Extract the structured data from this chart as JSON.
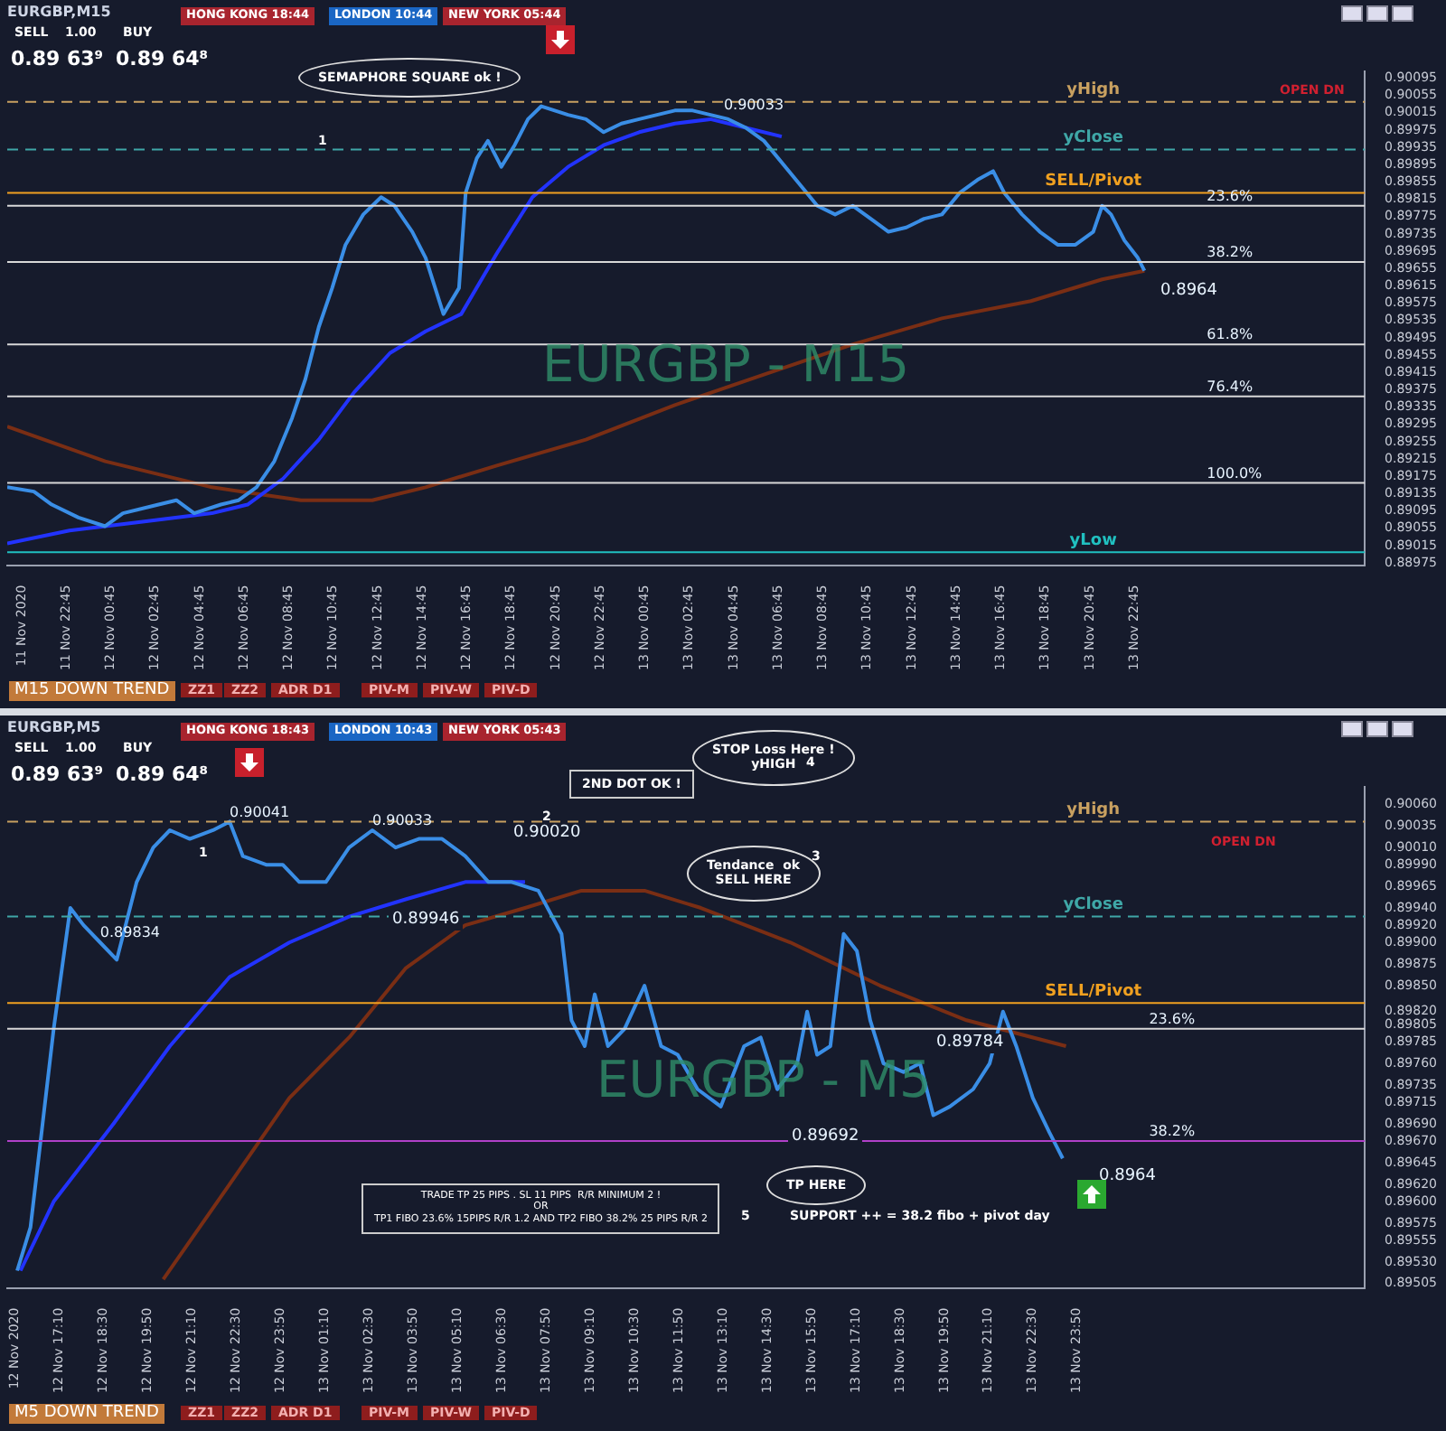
{
  "chart_data": [
    {
      "type": "line",
      "title": "EURGBP,M15",
      "xlim": [
        "2020-11-11T20:06",
        "2020-11-14T09:06"
      ],
      "xticks": [
        {
          "value": "2020-11-11T20:45",
          "label": "11 Nov 2020"
        },
        {
          "value": "2020-11-11T22:45",
          "label": "11 Nov 22:45"
        },
        {
          "value": "2020-11-12T00:45",
          "label": "12 Nov 00:45"
        },
        {
          "value": "2020-11-12T02:45",
          "label": "12 Nov 02:45"
        },
        {
          "value": "2020-11-12T04:45",
          "label": "12 Nov 04:45"
        },
        {
          "value": "2020-11-12T06:45",
          "label": "12 Nov 06:45"
        },
        {
          "value": "2020-11-12T08:45",
          "label": "12 Nov 08:45"
        },
        {
          "value": "2020-11-12T10:45",
          "label": "12 Nov 10:45"
        },
        {
          "value": "2020-11-12T12:45",
          "label": "12 Nov 12:45"
        },
        {
          "value": "2020-11-12T14:45",
          "label": "12 Nov 14:45"
        },
        {
          "value": "2020-11-12T16:45",
          "label": "12 Nov 16:45"
        },
        {
          "value": "2020-11-12T18:45",
          "label": "12 Nov 18:45"
        },
        {
          "value": "2020-11-12T20:45",
          "label": "12 Nov 20:45"
        },
        {
          "value": "2020-11-12T22:45",
          "label": "12 Nov 22:45"
        },
        {
          "value": "2020-11-13T00:45",
          "label": "13 Nov 00:45"
        },
        {
          "value": "2020-11-13T02:45",
          "label": "13 Nov 02:45"
        },
        {
          "value": "2020-11-13T04:45",
          "label": "13 Nov 04:45"
        },
        {
          "value": "2020-11-13T06:45",
          "label": "13 Nov 06:45"
        },
        {
          "value": "2020-11-13T08:45",
          "label": "13 Nov 08:45"
        },
        {
          "value": "2020-11-13T10:45",
          "label": "13 Nov 10:45"
        },
        {
          "value": "2020-11-13T12:45",
          "label": "13 Nov 12:45"
        },
        {
          "value": "2020-11-13T14:45",
          "label": "13 Nov 14:45"
        },
        {
          "value": "2020-11-13T16:45",
          "label": "13 Nov 16:45"
        },
        {
          "value": "2020-11-13T18:45",
          "label": "13 Nov 18:45"
        },
        {
          "value": "2020-11-13T20:45",
          "label": "13 Nov 20:45"
        },
        {
          "value": "2020-11-13T22:45",
          "label": "13 Nov 22:45"
        }
      ],
      "ylim": [
        0.8897,
        0.9011
      ],
      "yticks": [
        0.90095,
        0.90055,
        0.90015,
        0.89975,
        0.89935,
        0.89895,
        0.89855,
        0.89815,
        0.89775,
        0.89735,
        0.89695,
        0.89655,
        0.89615,
        0.89575,
        0.89535,
        0.89495,
        0.89455,
        0.89415,
        0.89375,
        0.89335,
        0.89295,
        0.89255,
        0.89215,
        0.89175,
        0.89135,
        0.89095,
        0.89055,
        0.89015,
        0.88975
      ],
      "grid": false,
      "legend": false,
      "marker": "none",
      "line_style": "solid",
      "series": [
        {
          "color": "#3a8ee6",
          "x": [
            "2020-11-11T20:06",
            "2020-11-11T21:18",
            "2020-11-11T22:06",
            "2020-11-11T23:18",
            "2020-11-12T00:30",
            "2020-11-12T01:18",
            "2020-11-12T02:54",
            "2020-11-12T03:42",
            "2020-11-12T04:30",
            "2020-11-12T05:42",
            "2020-11-12T06:30",
            "2020-11-12T07:18",
            "2020-11-12T08:06",
            "2020-11-12T08:54",
            "2020-11-12T09:30",
            "2020-11-12T10:06",
            "2020-11-12T10:42",
            "2020-11-12T11:18",
            "2020-11-12T12:06",
            "2020-11-12T12:54",
            "2020-11-12T13:30",
            "2020-11-12T14:18",
            "2020-11-12T14:54",
            "2020-11-12T15:42",
            "2020-11-12T16:24",
            "2020-11-12T16:42",
            "2020-11-12T17:12",
            "2020-11-12T17:42",
            "2020-11-12T18:18",
            "2020-11-12T18:54",
            "2020-11-12T19:30",
            "2020-11-12T20:06",
            "2020-11-12T20:42",
            "2020-11-12T21:18",
            "2020-11-12T22:06",
            "2020-11-12T22:54",
            "2020-11-12T23:42",
            "2020-11-13T00:30",
            "2020-11-13T01:18",
            "2020-11-13T02:06",
            "2020-11-13T02:54",
            "2020-11-13T03:42",
            "2020-11-13T04:30",
            "2020-11-13T05:18",
            "2020-11-13T06:06",
            "2020-11-13T07:42",
            "2020-11-13T08:30",
            "2020-11-13T09:18",
            "2020-11-13T10:06",
            "2020-11-13T10:54",
            "2020-11-13T11:42",
            "2020-11-13T12:30",
            "2020-11-13T13:18",
            "2020-11-13T14:06",
            "2020-11-13T14:54",
            "2020-11-13T15:42",
            "2020-11-13T16:24",
            "2020-11-13T16:54",
            "2020-11-13T17:42",
            "2020-11-13T18:30",
            "2020-11-13T19:18",
            "2020-11-13T20:06",
            "2020-11-13T20:54",
            "2020-11-13T21:18",
            "2020-11-13T21:42",
            "2020-11-13T22:18",
            "2020-11-13T22:54",
            "2020-11-13T23:12"
          ],
          "values": [
            0.8915,
            0.8914,
            0.8911,
            0.8908,
            0.8906,
            0.8909,
            0.8911,
            0.8912,
            0.8909,
            0.8911,
            0.8912,
            0.8915,
            0.8921,
            0.8931,
            0.894,
            0.8952,
            0.8961,
            0.8971,
            0.8978,
            0.8982,
            0.898,
            0.8974,
            0.8968,
            0.8955,
            0.8961,
            0.8983,
            0.8991,
            0.8995,
            0.8989,
            0.8994,
            0.9,
            0.9003,
            0.9002,
            0.9001,
            0.9,
            0.8997,
            0.8999,
            0.9,
            0.9001,
            0.9002,
            0.9002,
            0.9001,
            0.9,
            0.8998,
            0.8995,
            0.8985,
            0.898,
            0.8978,
            0.898,
            0.8977,
            0.8974,
            0.8975,
            0.8977,
            0.8978,
            0.8983,
            0.8986,
            0.8988,
            0.8983,
            0.8978,
            0.8974,
            0.8971,
            0.8971,
            0.8974,
            0.898,
            0.8978,
            0.8972,
            0.8968,
            0.8965
          ]
        },
        {
          "color": "#2233ff",
          "x": [
            "2020-11-11T20:06",
            "2020-11-11T22:54",
            "2020-11-12T02:06",
            "2020-11-12T05:18",
            "2020-11-12T06:54",
            "2020-11-12T08:30",
            "2020-11-12T10:06",
            "2020-11-12T11:42",
            "2020-11-12T13:18",
            "2020-11-12T14:54",
            "2020-11-12T16:30",
            "2020-11-12T18:06",
            "2020-11-12T19:42",
            "2020-11-12T21:18",
            "2020-11-12T22:54",
            "2020-11-13T00:30",
            "2020-11-13T02:06",
            "2020-11-13T03:42",
            "2020-11-13T05:18",
            "2020-11-13T06:54"
          ],
          "values": [
            0.8902,
            0.8905,
            0.8907,
            0.8909,
            0.8911,
            0.8917,
            0.8926,
            0.8937,
            0.8946,
            0.8951,
            0.8955,
            0.8969,
            0.8982,
            0.8989,
            0.8994,
            0.8997,
            0.8999,
            0.9,
            0.8998,
            0.8996
          ]
        },
        {
          "color": "#7a2e14",
          "x": [
            "2020-11-11T20:06",
            "2020-11-12T00:30",
            "2020-11-12T05:18",
            "2020-11-12T09:18",
            "2020-11-12T12:30",
            "2020-11-12T14:54",
            "2020-11-12T18:06",
            "2020-11-12T22:06",
            "2020-11-13T02:06",
            "2020-11-13T06:06",
            "2020-11-13T10:06",
            "2020-11-13T14:06",
            "2020-11-13T18:06",
            "2020-11-13T21:18",
            "2020-11-13T23:12"
          ],
          "values": [
            0.8929,
            0.8921,
            0.8915,
            0.8912,
            0.8912,
            0.8915,
            0.892,
            0.8926,
            0.8934,
            0.8941,
            0.8948,
            0.8954,
            0.8958,
            0.8963,
            0.8965
          ]
        }
      ],
      "ref_lines": [
        {
          "axis": "y",
          "value": 0.9004,
          "label": "yHigh",
          "color": "#c8a060",
          "line_style": "dashed"
        },
        {
          "axis": "y",
          "value": 0.8993,
          "label": "yClose",
          "color": "#3fa7a7",
          "line_style": "dashed"
        },
        {
          "axis": "y",
          "value": 0.8983,
          "label": "SELL/Pivot",
          "color": "#f0a020",
          "line_style": "solid"
        },
        {
          "axis": "y",
          "value": 0.898,
          "color": "#d8d8d8",
          "line_style": "solid"
        },
        {
          "axis": "y",
          "value": 0.8967,
          "color": "#d8d8d8",
          "line_style": "solid"
        },
        {
          "axis": "y",
          "value": 0.8948,
          "color": "#d8d8d8",
          "line_style": "solid"
        },
        {
          "axis": "y",
          "value": 0.8936,
          "color": "#d8d8d8",
          "line_style": "solid"
        },
        {
          "axis": "y",
          "value": 0.8916,
          "color": "#d8d8d8",
          "line_style": "solid"
        },
        {
          "axis": "y",
          "value": 0.89,
          "label": "yLow",
          "color": "#20c0c0",
          "line_style": "solid"
        }
      ],
      "annotations": [
        "HONG KONG 18:44",
        "LONDON 10:44",
        "NEW YORK 05:44",
        "SELL",
        "BUY",
        "1.00",
        "0.89 63⁹",
        "0.89 64⁸",
        "SEMAPHORE SQUARE ok !",
        "1",
        "EURGBP - M15",
        "OPEN DN",
        "PIV-M",
        "PIV-W",
        "PIV-D",
        "M15 DOWN TREND",
        "ZZ1",
        "ZZ2",
        "ADR D1",
        "0.8964",
        {
          "text": "0.90033",
          "x": "2020-11-13T04:18",
          "y": 0.9001
        },
        {
          "text": "23.6%",
          "x": "2020-11-14T02:00",
          "y": 0.898
        },
        {
          "text": "38.2%",
          "x": "2020-11-14T02:00",
          "y": 0.8967
        },
        {
          "text": "61.8%",
          "x": "2020-11-14T02:00",
          "y": 0.8948
        },
        {
          "text": "76.4%",
          "x": "2020-11-14T02:00",
          "y": 0.8936
        },
        {
          "text": "100.0%",
          "x": "2020-11-14T02:00",
          "y": 0.8916
        }
      ]
    },
    {
      "type": "line",
      "title": "EURGBP,M5",
      "xlim": [
        "2020-11-12T15:36",
        "2020-11-14T08:30"
      ],
      "xticks": [
        {
          "value": "2020-11-12T15:50",
          "label": "12 Nov 2020"
        },
        {
          "value": "2020-11-12T17:10",
          "label": "12 Nov 17:10"
        },
        {
          "value": "2020-11-12T18:30",
          "label": "12 Nov 18:30"
        },
        {
          "value": "2020-11-12T19:50",
          "label": "12 Nov 19:50"
        },
        {
          "value": "2020-11-12T21:10",
          "label": "12 Nov 21:10"
        },
        {
          "value": "2020-11-12T22:30",
          "label": "12 Nov 22:30"
        },
        {
          "value": "2020-11-12T23:50",
          "label": "12 Nov 23:50"
        },
        {
          "value": "2020-11-13T01:10",
          "label": "13 Nov 01:10"
        },
        {
          "value": "2020-11-13T02:30",
          "label": "13 Nov 02:30"
        },
        {
          "value": "2020-11-13T03:50",
          "label": "13 Nov 03:50"
        },
        {
          "value": "2020-11-13T05:10",
          "label": "13 Nov 05:10"
        },
        {
          "value": "2020-11-13T06:30",
          "label": "13 Nov 06:30"
        },
        {
          "value": "2020-11-13T07:50",
          "label": "13 Nov 07:50"
        },
        {
          "value": "2020-11-13T09:10",
          "label": "13 Nov 09:10"
        },
        {
          "value": "2020-11-13T10:30",
          "label": "13 Nov 10:30"
        },
        {
          "value": "2020-11-13T11:50",
          "label": "13 Nov 11:50"
        },
        {
          "value": "2020-11-13T13:10",
          "label": "13 Nov 13:10"
        },
        {
          "value": "2020-11-13T14:30",
          "label": "13 Nov 14:30"
        },
        {
          "value": "2020-11-13T15:50",
          "label": "13 Nov 15:50"
        },
        {
          "value": "2020-11-13T17:10",
          "label": "13 Nov 17:10"
        },
        {
          "value": "2020-11-13T18:30",
          "label": "13 Nov 18:30"
        },
        {
          "value": "2020-11-13T19:50",
          "label": "13 Nov 19:50"
        },
        {
          "value": "2020-11-13T21:10",
          "label": "13 Nov 21:10"
        },
        {
          "value": "2020-11-13T22:30",
          "label": "13 Nov 22:30"
        },
        {
          "value": "2020-11-13T23:50",
          "label": "13 Nov 23:50"
        }
      ],
      "ylim": [
        0.895,
        0.9008
      ],
      "yticks": [
        {
          "value": 0.9006,
          "label": "0.90060"
        },
        0.90035,
        {
          "value": 0.9001,
          "label": "0.90010"
        },
        {
          "value": 0.8999,
          "label": "0.89990"
        },
        0.89965,
        {
          "value": 0.8994,
          "label": "0.89940"
        },
        {
          "value": 0.8992,
          "label": "0.89920"
        },
        {
          "value": 0.899,
          "label": "0.89900"
        },
        0.89875,
        {
          "value": 0.8985,
          "label": "0.89850"
        },
        {
          "value": 0.8982,
          "label": "0.89820"
        },
        0.89805,
        0.89785,
        {
          "value": 0.8976,
          "label": "0.89760"
        },
        0.89735,
        0.89715,
        {
          "value": 0.8969,
          "label": "0.89690"
        },
        {
          "value": 0.8967,
          "label": "0.89670"
        },
        0.89645,
        {
          "value": 0.8962,
          "label": "0.89620"
        },
        {
          "value": 0.896,
          "label": "0.89600"
        },
        0.89575,
        0.89555,
        {
          "value": 0.8953,
          "label": "0.89530"
        },
        0.89505
      ],
      "grid": false,
      "legend": false,
      "marker": "none",
      "line_style": "solid",
      "series": [
        {
          "color": "#3a8ee6",
          "x": [
            "2020-11-12T15:54",
            "2020-11-12T16:18",
            "2020-11-12T17:00",
            "2020-11-12T17:30",
            "2020-11-12T17:54",
            "2020-11-12T18:24",
            "2020-11-12T18:54",
            "2020-11-12T19:30",
            "2020-11-12T20:00",
            "2020-11-12T20:30",
            "2020-11-12T21:06",
            "2020-11-12T21:48",
            "2020-11-12T22:18",
            "2020-11-12T22:42",
            "2020-11-12T23:24",
            "2020-11-12T23:54",
            "2020-11-13T00:24",
            "2020-11-13T01:12",
            "2020-11-13T01:54",
            "2020-11-13T02:36",
            "2020-11-13T03:18",
            "2020-11-13T04:00",
            "2020-11-13T04:42",
            "2020-11-13T05:24",
            "2020-11-13T06:06",
            "2020-11-13T06:48",
            "2020-11-13T07:36",
            "2020-11-13T08:18",
            "2020-11-13T08:36",
            "2020-11-13T09:00",
            "2020-11-13T09:18",
            "2020-11-13T09:42",
            "2020-11-13T10:12",
            "2020-11-13T10:48",
            "2020-11-13T11:18",
            "2020-11-13T11:48",
            "2020-11-13T12:24",
            "2020-11-13T13:06",
            "2020-11-13T13:48",
            "2020-11-13T14:18",
            "2020-11-13T14:48",
            "2020-11-13T15:24",
            "2020-11-13T15:42",
            "2020-11-13T16:00",
            "2020-11-13T16:24",
            "2020-11-13T16:48",
            "2020-11-13T17:12",
            "2020-11-13T17:36",
            "2020-11-13T18:00",
            "2020-11-13T18:36",
            "2020-11-13T19:06",
            "2020-11-13T19:30",
            "2020-11-13T20:00",
            "2020-11-13T20:42",
            "2020-11-13T21:12",
            "2020-11-13T21:36",
            "2020-11-13T22:00",
            "2020-11-13T22:30",
            "2020-11-13T23:00",
            "2020-11-13T23:24"
          ],
          "values": [
            0.8952,
            0.8957,
            0.898,
            0.8994,
            0.8992,
            0.899,
            0.8988,
            0.8997,
            0.9001,
            0.9003,
            0.9002,
            0.9003,
            0.9004,
            0.9,
            0.8999,
            0.8999,
            0.8997,
            0.8997,
            0.9001,
            0.9003,
            0.9001,
            0.9002,
            0.9002,
            0.9,
            0.8997,
            0.8997,
            0.8996,
            0.8991,
            0.8981,
            0.8978,
            0.8984,
            0.8978,
            0.898,
            0.8985,
            0.8978,
            0.8977,
            0.8973,
            0.8971,
            0.8978,
            0.8979,
            0.8973,
            0.8976,
            0.8982,
            0.8977,
            0.8978,
            0.8991,
            0.8989,
            0.8981,
            0.8976,
            0.8975,
            0.8976,
            0.897,
            0.8971,
            0.8973,
            0.8976,
            0.8982,
            0.8978,
            0.8972,
            0.8968,
            0.8965
          ]
        },
        {
          "color": "#2233ff",
          "x": [
            "2020-11-12T16:00",
            "2020-11-12T17:00",
            "2020-11-12T18:48",
            "2020-11-12T20:30",
            "2020-11-12T22:18",
            "2020-11-13T00:06",
            "2020-11-13T01:54",
            "2020-11-13T03:36",
            "2020-11-13T05:24",
            "2020-11-13T06:18",
            "2020-11-13T07:12"
          ],
          "values": [
            0.8952,
            0.896,
            0.8969,
            0.8978,
            0.8986,
            0.899,
            0.8993,
            0.8995,
            0.8997,
            0.8997,
            0.8997
          ]
        },
        {
          "color": "#7a2e14",
          "x": [
            "2020-11-12T20:18",
            "2020-11-12T22:18",
            "2020-11-13T00:06",
            "2020-11-13T01:54",
            "2020-11-13T03:36",
            "2020-11-13T05:24",
            "2020-11-13T07:12",
            "2020-11-13T08:54",
            "2020-11-13T10:48",
            "2020-11-13T12:30",
            "2020-11-13T15:12",
            "2020-11-13T17:54",
            "2020-11-13T20:30",
            "2020-11-13T23:30"
          ],
          "values": [
            0.8951,
            0.8962,
            0.8972,
            0.8979,
            0.8987,
            0.8992,
            0.8994,
            0.8996,
            0.8996,
            0.8994,
            0.899,
            0.8985,
            0.8981,
            0.8978
          ]
        }
      ],
      "ref_lines": [
        {
          "axis": "y",
          "value": 0.9004,
          "label": "yHigh",
          "color": "#c8a060",
          "line_style": "dashed"
        },
        {
          "axis": "y",
          "value": 0.8993,
          "label": "yClose",
          "color": "#3fa7a7",
          "line_style": "dashed"
        },
        {
          "axis": "y",
          "value": 0.8983,
          "label": "SELL/Pivot",
          "color": "#f0a020",
          "line_style": "solid"
        },
        {
          "axis": "y",
          "value": 0.898,
          "color": "#d8d8d8",
          "line_style": "solid"
        },
        {
          "axis": "y",
          "value": 0.8967,
          "color": "#b040c8",
          "line_style": "solid"
        }
      ],
      "annotations": [
        "HONG KONG 18:43",
        "LONDON 10:43",
        "NEW YORK 05:43",
        "SELL",
        "BUY",
        "1.00",
        "0.89 63⁹",
        "0.89 64⁸",
        "1",
        "2ND DOT OK !",
        "2",
        "STOP Loss Here !\nyHIGH",
        "4",
        "Tendance  ok\nSELL HERE",
        "3",
        "EURGBP - M5",
        "TP HERE",
        "5",
        "SUPPORT ++ = 38.2 fibo + pivot day",
        "TRADE TP 25 PIPS . SL 11 PIPS  R/R MINIMUM 2 !\nOR\nTP1 FIBO 23.6% 15PIPS R/R 1.2 AND TP2 FIBO 38.2% 25 PIPS R/R 2",
        "OPEN DN",
        "PIV-M",
        "PIV-W",
        "PIV-D",
        "M5 DOWN TREND",
        "ZZ1",
        "ZZ2",
        "ADR D1",
        "0.90020",
        "0.89946",
        "0.89692",
        "0.89784",
        "0.8964",
        {
          "text": "0.90041",
          "x": "2020-11-12T22:18",
          "y": 0.9004
        },
        {
          "text": "0.90033",
          "x": "2020-11-13T02:36",
          "y": 0.9003
        },
        {
          "text": "0.89834",
          "x": "2020-11-12T18:24",
          "y": 0.899
        },
        {
          "text": "23.6%",
          "x": "2020-11-14T02:00",
          "y": 0.898
        },
        {
          "text": "38.2%",
          "x": "2020-11-14T02:00",
          "y": 0.8967
        }
      ]
    }
  ]
}
